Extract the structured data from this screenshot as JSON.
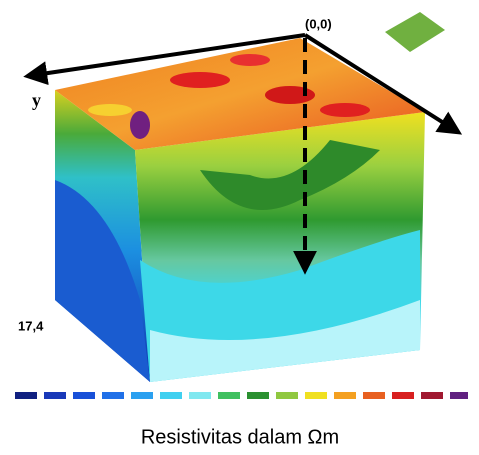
{
  "figure": {
    "origin_label": "(0,0)",
    "y_label": "y",
    "depth_label": "17,4",
    "caption": "Resistivitas dalam Ωm"
  }
}
